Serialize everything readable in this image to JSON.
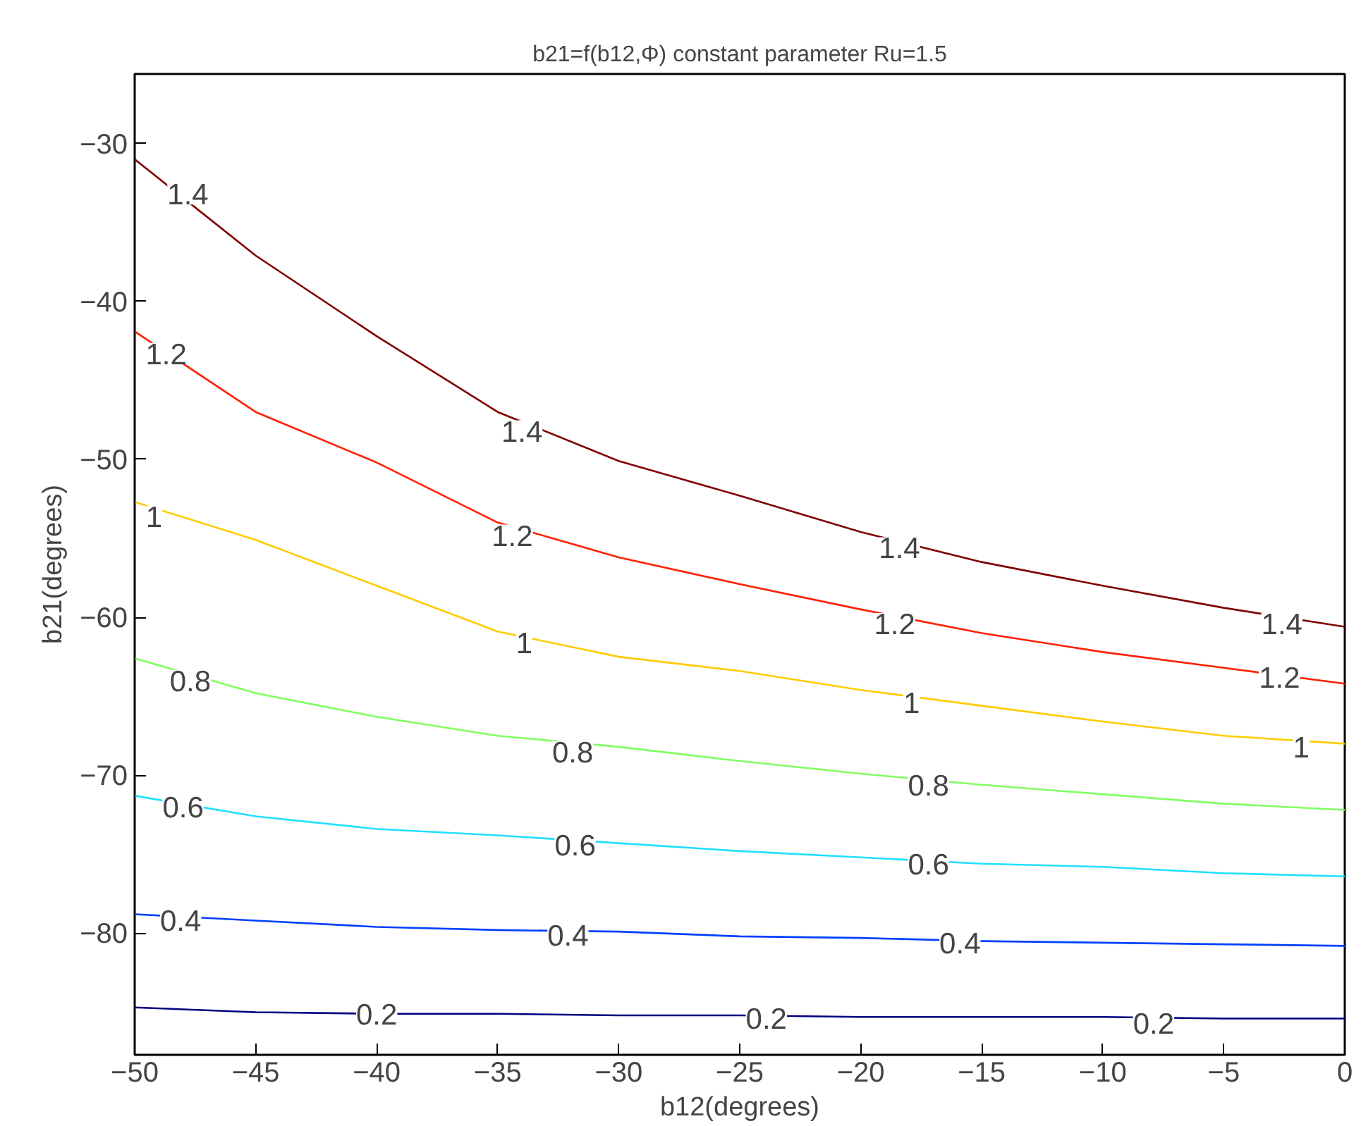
{
  "chart_data": {
    "type": "line",
    "title": "b21=f(b12,Φ) constant parameter Ru=1.5",
    "xlabel": "b12(degrees)",
    "ylabel": "b21(degrees)",
    "x": [
      -50,
      -45,
      -40,
      -35,
      -30,
      -25,
      -20,
      -15,
      -10,
      -5,
      0
    ],
    "series": [
      {
        "color": "#800000",
        "values": [
          -31.0,
          -37.1,
          -42.2,
          -47.0,
          -50.1,
          -52.3,
          -54.6,
          -56.5,
          -58.0,
          -59.4,
          -60.6
        ]
      },
      {
        "color": "#ff2000",
        "values": [
          -41.9,
          -47.0,
          -50.2,
          -54.0,
          -56.2,
          -57.9,
          -59.5,
          -61.0,
          -62.2,
          -63.2,
          -64.2
        ]
      },
      {
        "color": "#ffcc00",
        "values": [
          -52.7,
          -55.1,
          -58.0,
          -60.9,
          -62.5,
          -63.4,
          -64.6,
          -65.6,
          -66.6,
          -67.5,
          -68.0
        ]
      },
      {
        "color": "#80ff60",
        "values": [
          -62.6,
          -64.8,
          -66.3,
          -67.5,
          -68.2,
          -69.1,
          -69.9,
          -70.6,
          -71.2,
          -71.8,
          -72.2
        ]
      },
      {
        "color": "#20e0ff",
        "values": [
          -71.3,
          -72.6,
          -73.4,
          -73.8,
          -74.3,
          -74.8,
          -75.2,
          -75.6,
          -75.8,
          -76.2,
          -76.4
        ]
      },
      {
        "color": "#0040ff",
        "values": [
          -78.8,
          -79.2,
          -79.6,
          -79.8,
          -79.9,
          -80.2,
          -80.3,
          -80.5,
          -80.6,
          -80.7,
          -80.8
        ]
      },
      {
        "color": "#000080",
        "values": [
          -84.7,
          -85.0,
          -85.1,
          -85.1,
          -85.2,
          -85.2,
          -85.3,
          -85.3,
          -85.3,
          -85.4,
          -85.4
        ]
      }
    ],
    "annotations": [
      {
        "text": "1.4",
        "x": -47.8,
        "y": -33.2
      },
      {
        "text": "1.4",
        "x": -34.0,
        "y": -48.2
      },
      {
        "text": "1.4",
        "x": -18.4,
        "y": -55.6
      },
      {
        "text": "1.4",
        "x": -2.6,
        "y": -60.4
      },
      {
        "text": "1.2",
        "x": -48.7,
        "y": -43.3
      },
      {
        "text": "1.2",
        "x": -34.4,
        "y": -54.8
      },
      {
        "text": "1.2",
        "x": -18.6,
        "y": -60.4
      },
      {
        "text": "1.2",
        "x": -2.7,
        "y": -63.8
      },
      {
        "text": "1",
        "x": -49.2,
        "y": -53.6
      },
      {
        "text": "1",
        "x": -33.9,
        "y": -61.6
      },
      {
        "text": "1",
        "x": -17.9,
        "y": -65.4
      },
      {
        "text": "1",
        "x": -1.8,
        "y": -68.2
      },
      {
        "text": "0.8",
        "x": -47.7,
        "y": -64.0
      },
      {
        "text": "0.8",
        "x": -31.9,
        "y": -68.5
      },
      {
        "text": "0.8",
        "x": -17.2,
        "y": -70.6
      },
      {
        "text": "0.6",
        "x": -48.0,
        "y": -72.0
      },
      {
        "text": "0.6",
        "x": -31.8,
        "y": -74.4
      },
      {
        "text": "0.6",
        "x": -17.2,
        "y": -75.6
      },
      {
        "text": "0.4",
        "x": -48.1,
        "y": -79.2
      },
      {
        "text": "0.4",
        "x": -32.1,
        "y": -80.1
      },
      {
        "text": "0.4",
        "x": -15.9,
        "y": -80.6
      },
      {
        "text": "0.2",
        "x": -40.0,
        "y": -85.1
      },
      {
        "text": "0.2",
        "x": -23.9,
        "y": -85.4
      },
      {
        "text": "0.2",
        "x": -7.9,
        "y": -85.7
      }
    ],
    "xlim": [
      -50,
      0
    ],
    "ylim": [
      -87.7,
      -25.6
    ],
    "xticks": [
      -50,
      -45,
      -40,
      -35,
      -30,
      -25,
      -20,
      -15,
      -10,
      -5,
      0
    ],
    "yticks": [
      -80,
      -70,
      -60,
      -50,
      -40,
      -30
    ],
    "grid": false,
    "line_style": "solid"
  }
}
